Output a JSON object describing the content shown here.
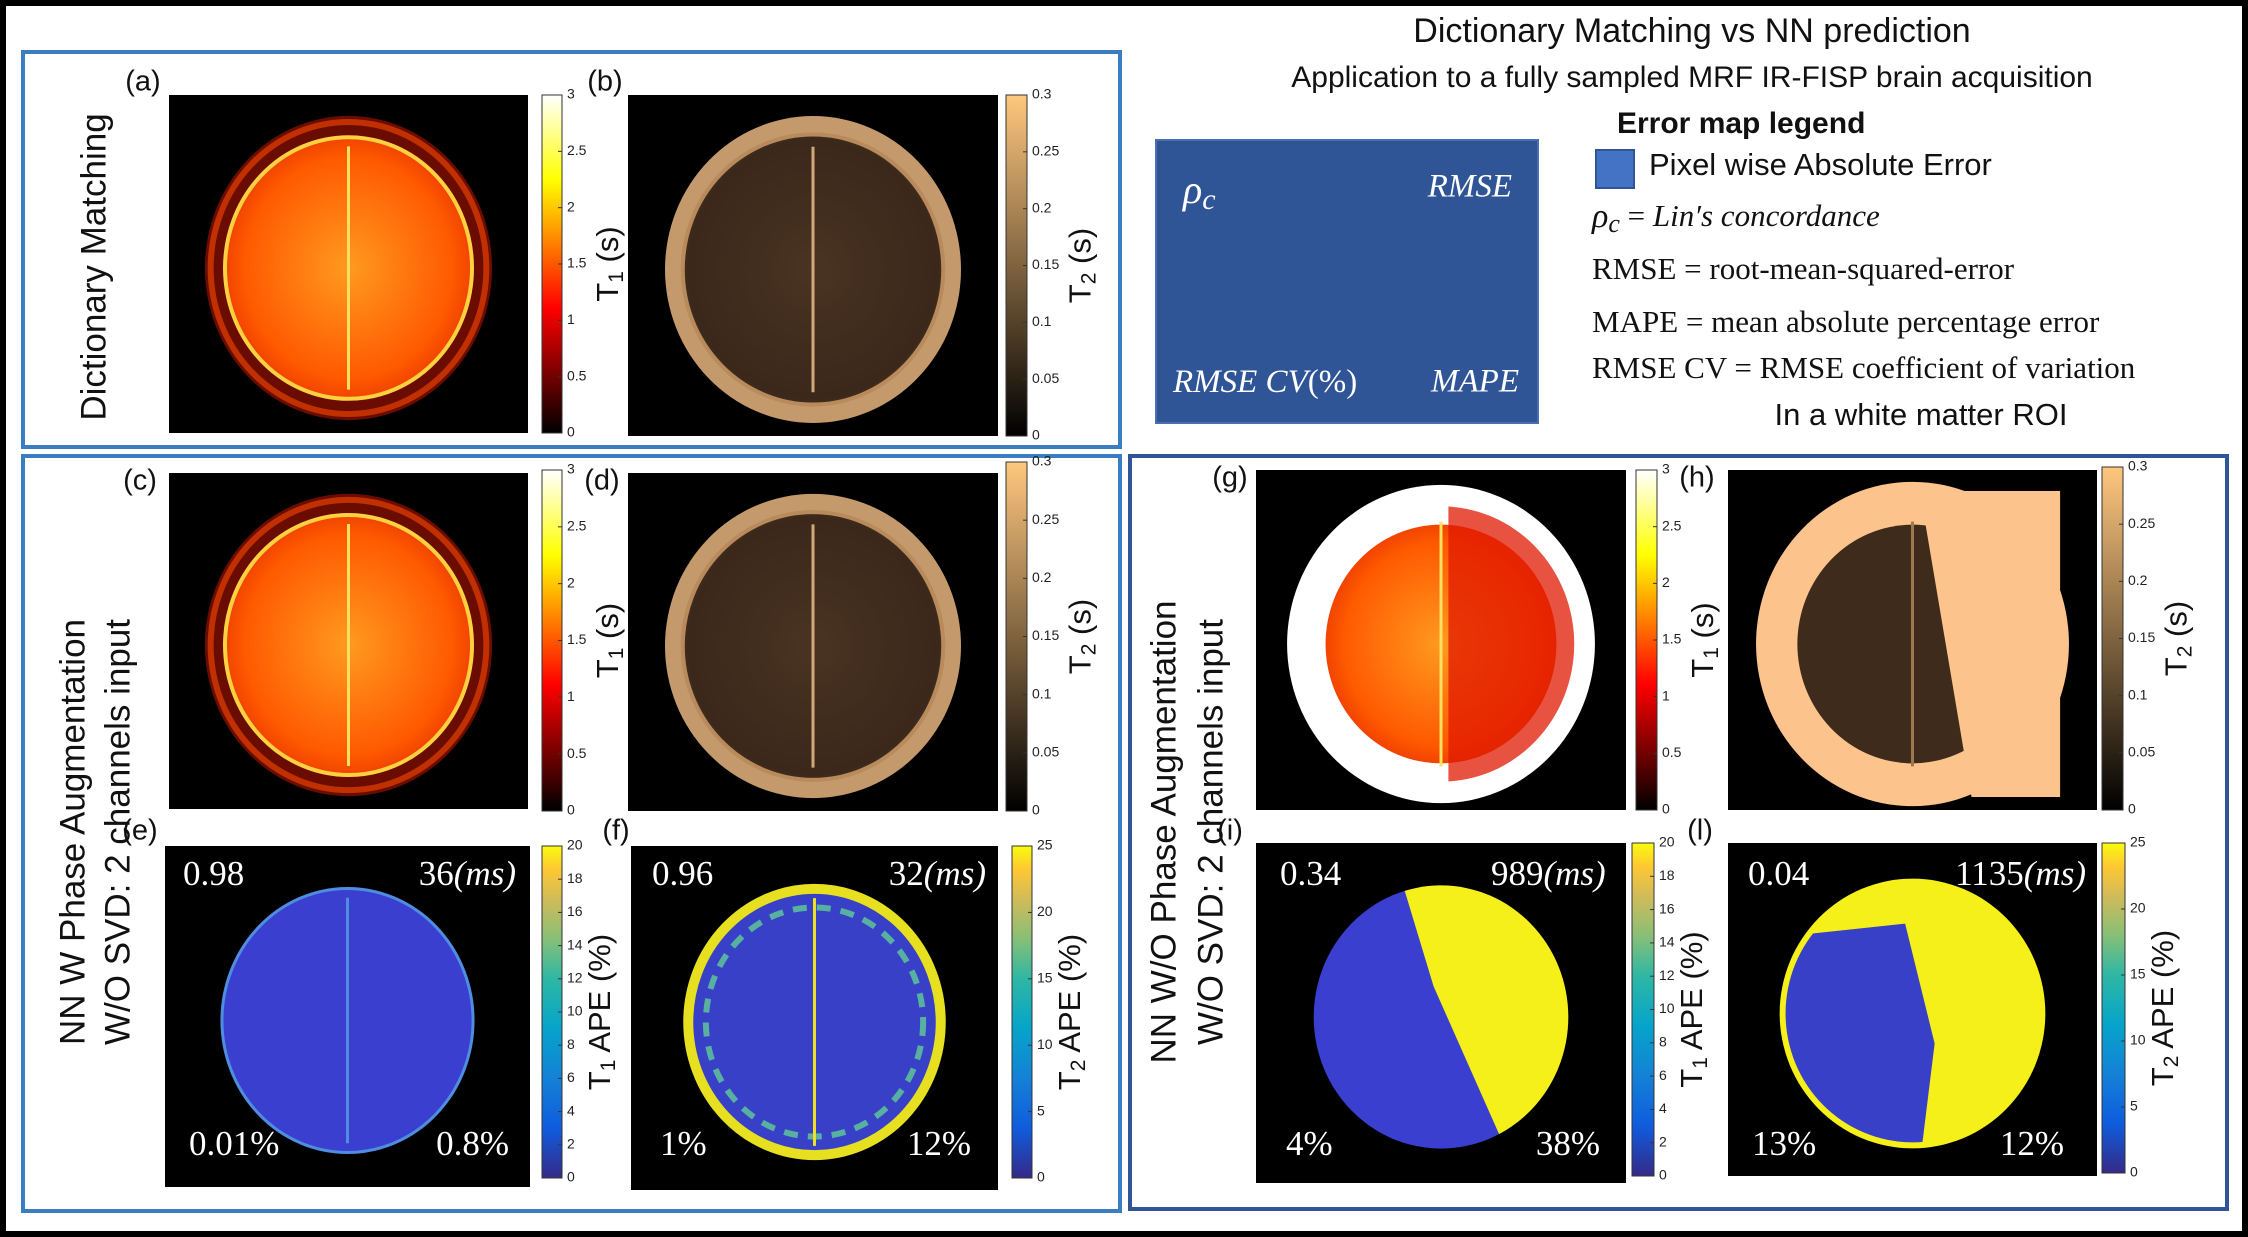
{
  "header": {
    "title": "Dictionary Matching vs NN prediction",
    "subtitle": "Application to a fully sampled MRF IR-FISP brain acquisition"
  },
  "legend": {
    "box": {
      "rho": "ρ",
      "rho_sub": "c",
      "rmse": "RMSE",
      "rmse_cv": "RMSE CV",
      "rmse_cv_unit": "(%)",
      "mape": "MAPE"
    },
    "title": "Error map legend",
    "swatch_label": "Pixel wise Absolute Error",
    "definitions": [
      {
        "term": "ρ",
        "sub": "c",
        "sep": " = ",
        "text": "Lin′s concordance"
      },
      {
        "term": "RMSE",
        "sep": " = ",
        "text": "root-mean-squared-error"
      },
      {
        "term": "MAPE",
        "sep": " = ",
        "text": "mean absolute percentage error"
      },
      {
        "term": "RMSE CV",
        "sep": " = ",
        "text": "RMSE coefficient of variation"
      }
    ],
    "note": "In a white matter ROI"
  },
  "row_labels": [
    [
      "Dictionary Matching"
    ],
    [
      "NN W Phase Augmentation",
      "W/O SVD: 2 channels input"
    ],
    [
      "NN W/O Phase Augmentation",
      "W/O SVD: 2 channels input"
    ]
  ],
  "panels": [
    {
      "letter": "(a)",
      "kind": "t1",
      "colorbar": {
        "map": "hot",
        "lim": [
          0,
          3
        ],
        "ticks": [
          0,
          0.5,
          1,
          1.5,
          2,
          2.5,
          3
        ],
        "label": {
          "base": "T",
          "sub": "1",
          "rest": " (s)"
        }
      }
    },
    {
      "letter": "(b)",
      "kind": "t2",
      "colorbar": {
        "map": "copper",
        "lim": [
          0,
          0.3
        ],
        "ticks": [
          0,
          0.05,
          0.1,
          0.15,
          0.2,
          0.25,
          0.3
        ],
        "label": {
          "base": "T",
          "sub": "2",
          "rest": " (s)"
        }
      }
    },
    {
      "letter": "(c)",
      "kind": "t1",
      "colorbar": {
        "map": "hot",
        "lim": [
          0,
          3
        ],
        "ticks": [
          0,
          0.5,
          1,
          1.5,
          2,
          2.5,
          3
        ],
        "label": {
          "base": "T",
          "sub": "1",
          "rest": " (s)"
        }
      }
    },
    {
      "letter": "(d)",
      "kind": "t2",
      "colorbar": {
        "map": "copper",
        "lim": [
          0,
          0.3
        ],
        "ticks": [
          0,
          0.05,
          0.1,
          0.15,
          0.2,
          0.25,
          0.3
        ],
        "label": {
          "base": "T",
          "sub": "2",
          "rest": " (s)"
        }
      }
    },
    {
      "letter": "(e)",
      "kind": "ape_e",
      "colorbar": {
        "map": "parula",
        "lim": [
          0,
          20
        ],
        "ticks": [
          0,
          2,
          4,
          6,
          8,
          10,
          12,
          14,
          16,
          18,
          20
        ],
        "label": {
          "base": "T",
          "sub": "1",
          "rest": " APE (%)"
        }
      },
      "metrics": {
        "rho": 0.98,
        "rmse": "36",
        "rmse_unit": "(ms)",
        "rmse_cv": "0.01%",
        "mape": "0.8%"
      }
    },
    {
      "letter": "(f)",
      "kind": "ape_f",
      "colorbar": {
        "map": "parula",
        "lim": [
          0,
          25
        ],
        "ticks": [
          0,
          5,
          10,
          15,
          20,
          25
        ],
        "label": {
          "base": "T",
          "sub": "2",
          "rest": " APE (%)"
        }
      },
      "metrics": {
        "rho": 0.96,
        "rmse": "32",
        "rmse_unit": "(ms)",
        "rmse_cv": "1%",
        "mape": "12%"
      }
    },
    {
      "letter": "(g)",
      "kind": "t1_bad",
      "colorbar": {
        "map": "hot",
        "lim": [
          0,
          3
        ],
        "ticks": [
          0,
          0.5,
          1,
          1.5,
          2,
          2.5,
          3
        ],
        "label": {
          "base": "T",
          "sub": "1",
          "rest": " (s)"
        }
      }
    },
    {
      "letter": "(h)",
      "kind": "t2_bad",
      "colorbar": {
        "map": "copper",
        "lim": [
          0,
          0.3
        ],
        "ticks": [
          0,
          0.05,
          0.1,
          0.15,
          0.2,
          0.25,
          0.3
        ],
        "label": {
          "base": "T",
          "sub": "2",
          "rest": " (s)"
        }
      }
    },
    {
      "letter": "(i)",
      "kind": "ape_i",
      "colorbar": {
        "map": "parula",
        "lim": [
          0,
          20
        ],
        "ticks": [
          0,
          2,
          4,
          6,
          8,
          10,
          12,
          14,
          16,
          18,
          20
        ],
        "label": {
          "base": "T",
          "sub": "1",
          "rest": " APE (%)"
        }
      },
      "metrics": {
        "rho": 0.34,
        "rmse": "989",
        "rmse_unit": "(ms)",
        "rmse_cv": "4%",
        "mape": "38%"
      }
    },
    {
      "letter": "(l)",
      "kind": "ape_l",
      "colorbar": {
        "map": "parula",
        "lim": [
          0,
          25
        ],
        "ticks": [
          0,
          5,
          10,
          15,
          20,
          25
        ],
        "label": {
          "base": "T",
          "sub": "2",
          "rest": " APE (%)"
        }
      },
      "metrics": {
        "rho": 0.04,
        "rmse": "1135",
        "rmse_unit": "(ms)",
        "rmse_cv": "13%",
        "mape": "12%"
      }
    }
  ]
}
